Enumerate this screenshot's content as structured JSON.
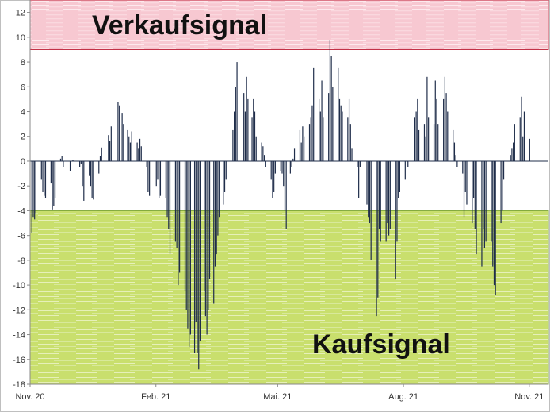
{
  "chart_data": {
    "type": "bar",
    "title": "",
    "xlabel": "",
    "ylabel": "",
    "ylim": [
      -18,
      13
    ],
    "yticks": [
      12,
      10,
      8,
      6,
      4,
      2,
      0,
      -2,
      -4,
      -6,
      -8,
      -10,
      -12,
      -14,
      -16,
      -18
    ],
    "x_range": [
      "2020-11-01",
      "2021-11-15"
    ],
    "x_tick_labels": [
      {
        "date": "2020-11-01",
        "label": "Nov. 20"
      },
      {
        "date": "2021-02-01",
        "label": "Feb. 21"
      },
      {
        "date": "2021-05-01",
        "label": "Mai. 21"
      },
      {
        "date": "2021-08-01",
        "label": "Aug. 21"
      },
      {
        "date": "2021-11-01",
        "label": "Nov. 21"
      }
    ],
    "grid": false,
    "bar_color": "#1f2d4a",
    "zones": [
      {
        "label": "Verkaufsignal",
        "from": 9,
        "to": 13,
        "color": "#f7cdd5",
        "border": "#c0283f"
      },
      {
        "label": "Kaufsignal",
        "from": -18,
        "to": -4,
        "color": "#cfe27a",
        "border": "#7ea63a"
      }
    ],
    "series": [
      {
        "points": [
          [
            "2020-11-02",
            -5.8
          ],
          [
            "2020-11-03",
            -4.5
          ],
          [
            "2020-11-04",
            -4.7
          ],
          [
            "2020-11-05",
            -4.2
          ],
          [
            "2020-11-09",
            -1.5
          ],
          [
            "2020-11-10",
            -2.5
          ],
          [
            "2020-11-11",
            -2.8
          ],
          [
            "2020-11-12",
            -3.0
          ],
          [
            "2020-11-16",
            -1.8
          ],
          [
            "2020-11-17",
            -3.9
          ],
          [
            "2020-11-18",
            -3.6
          ],
          [
            "2020-11-19",
            -3.0
          ],
          [
            "2020-11-23",
            0.2
          ],
          [
            "2020-11-24",
            0.4
          ],
          [
            "2020-11-25",
            -0.5
          ],
          [
            "2020-11-30",
            -0.8
          ],
          [
            "2020-12-02",
            0.1
          ],
          [
            "2020-12-07",
            -0.5
          ],
          [
            "2020-12-08",
            -0.2
          ],
          [
            "2020-12-09",
            -2.0
          ],
          [
            "2020-12-10",
            -3.2
          ],
          [
            "2020-12-14",
            -1.2
          ],
          [
            "2020-12-15",
            -2.0
          ],
          [
            "2020-12-16",
            -3.0
          ],
          [
            "2020-12-17",
            -3.1
          ],
          [
            "2020-12-21",
            -1.0
          ],
          [
            "2020-12-22",
            0.4
          ],
          [
            "2020-12-23",
            1.1
          ],
          [
            "2020-12-28",
            2.1
          ],
          [
            "2020-12-29",
            1.6
          ],
          [
            "2020-12-30",
            2.8
          ],
          [
            "2021-01-04",
            4.8
          ],
          [
            "2021-01-05",
            4.5
          ],
          [
            "2021-01-07",
            3.9
          ],
          [
            "2021-01-08",
            3.0
          ],
          [
            "2021-01-11",
            2.5
          ],
          [
            "2021-01-12",
            2.0
          ],
          [
            "2021-01-13",
            1.5
          ],
          [
            "2021-01-14",
            2.4
          ],
          [
            "2021-01-18",
            1.5
          ],
          [
            "2021-01-19",
            1.0
          ],
          [
            "2021-01-20",
            1.8
          ],
          [
            "2021-01-21",
            1.2
          ],
          [
            "2021-01-25",
            -0.5
          ],
          [
            "2021-01-26",
            -2.5
          ],
          [
            "2021-01-27",
            -2.8
          ],
          [
            "2021-02-01",
            -2.0
          ],
          [
            "2021-02-02",
            -1.5
          ],
          [
            "2021-02-03",
            -3.0
          ],
          [
            "2021-02-04",
            -2.8
          ],
          [
            "2021-02-08",
            -3.0
          ],
          [
            "2021-02-09",
            -4.5
          ],
          [
            "2021-02-10",
            -5.5
          ],
          [
            "2021-02-11",
            -7.5
          ],
          [
            "2021-02-15",
            -6.5
          ],
          [
            "2021-02-16",
            -7.0
          ],
          [
            "2021-02-17",
            -10.0
          ],
          [
            "2021-02-18",
            -9.0
          ],
          [
            "2021-02-22",
            -10.5
          ],
          [
            "2021-02-23",
            -12.0
          ],
          [
            "2021-02-24",
            -13.5
          ],
          [
            "2021-02-25",
            -15.0
          ],
          [
            "2021-02-26",
            -14.0
          ],
          [
            "2021-03-01",
            -15.5
          ],
          [
            "2021-03-02",
            -13.0
          ],
          [
            "2021-03-03",
            -15.5
          ],
          [
            "2021-03-04",
            -16.8
          ],
          [
            "2021-03-05",
            -14.5
          ],
          [
            "2021-03-08",
            -10.5
          ],
          [
            "2021-03-09",
            -12.5
          ],
          [
            "2021-03-10",
            -14.0
          ],
          [
            "2021-03-11",
            -12.0
          ],
          [
            "2021-03-12",
            -9.5
          ],
          [
            "2021-03-15",
            -11.5
          ],
          [
            "2021-03-16",
            -8.5
          ],
          [
            "2021-03-17",
            -7.5
          ],
          [
            "2021-03-18",
            -6.0
          ],
          [
            "2021-03-19",
            -4.5
          ],
          [
            "2021-03-22",
            -3.5
          ],
          [
            "2021-03-23",
            -2.5
          ],
          [
            "2021-03-24",
            -1.5
          ],
          [
            "2021-03-29",
            2.5
          ],
          [
            "2021-03-30",
            4.0
          ],
          [
            "2021-03-31",
            6.0
          ],
          [
            "2021-04-01",
            8.0
          ],
          [
            "2021-04-06",
            5.5
          ],
          [
            "2021-04-07",
            4.0
          ],
          [
            "2021-04-08",
            6.8
          ],
          [
            "2021-04-09",
            5.0
          ],
          [
            "2021-04-12",
            3.5
          ],
          [
            "2021-04-13",
            5.0
          ],
          [
            "2021-04-14",
            4.0
          ],
          [
            "2021-04-15",
            2.0
          ],
          [
            "2021-04-19",
            1.5
          ],
          [
            "2021-04-20",
            1.2
          ],
          [
            "2021-04-21",
            0.5
          ],
          [
            "2021-04-22",
            -0.5
          ],
          [
            "2021-04-26",
            -1.5
          ],
          [
            "2021-04-27",
            -3.0
          ],
          [
            "2021-04-28",
            -2.5
          ],
          [
            "2021-04-29",
            -1.0
          ],
          [
            "2021-05-03",
            -0.8
          ],
          [
            "2021-05-04",
            -1.0
          ],
          [
            "2021-05-05",
            -2.0
          ],
          [
            "2021-05-06",
            -4.0
          ],
          [
            "2021-05-07",
            -5.5
          ],
          [
            "2021-05-10",
            -1.0
          ],
          [
            "2021-05-11",
            -0.5
          ],
          [
            "2021-05-12",
            0.2
          ],
          [
            "2021-05-13",
            1.0
          ],
          [
            "2021-05-17",
            2.5
          ],
          [
            "2021-05-18",
            1.5
          ],
          [
            "2021-05-19",
            2.8
          ],
          [
            "2021-05-20",
            2.0
          ],
          [
            "2021-05-24",
            3.0
          ],
          [
            "2021-05-25",
            3.5
          ],
          [
            "2021-05-26",
            4.5
          ],
          [
            "2021-05-27",
            7.5
          ],
          [
            "2021-05-31",
            5.0
          ],
          [
            "2021-06-01",
            4.0
          ],
          [
            "2021-06-02",
            6.5
          ],
          [
            "2021-06-03",
            3.5
          ],
          [
            "2021-06-07",
            5.5
          ],
          [
            "2021-06-08",
            9.8
          ],
          [
            "2021-06-09",
            8.5
          ],
          [
            "2021-06-10",
            6.0
          ],
          [
            "2021-06-14",
            7.5
          ],
          [
            "2021-06-15",
            5.0
          ],
          [
            "2021-06-16",
            4.5
          ],
          [
            "2021-06-17",
            4.0
          ],
          [
            "2021-06-21",
            3.5
          ],
          [
            "2021-06-22",
            5.0
          ],
          [
            "2021-06-23",
            3.0
          ],
          [
            "2021-06-24",
            1.0
          ],
          [
            "2021-06-28",
            -0.5
          ],
          [
            "2021-06-29",
            -3.0
          ],
          [
            "2021-06-30",
            -0.5
          ],
          [
            "2021-07-05",
            -3.5
          ],
          [
            "2021-07-06",
            -4.5
          ],
          [
            "2021-07-07",
            -5.0
          ],
          [
            "2021-07-08",
            -8.0
          ],
          [
            "2021-07-12",
            -12.5
          ],
          [
            "2021-07-13",
            -11.0
          ],
          [
            "2021-07-14",
            -5.5
          ],
          [
            "2021-07-15",
            -6.5
          ],
          [
            "2021-07-19",
            -6.5
          ],
          [
            "2021-07-20",
            -5.0
          ],
          [
            "2021-07-21",
            -6.0
          ],
          [
            "2021-07-22",
            -5.5
          ],
          [
            "2021-07-26",
            -9.5
          ],
          [
            "2021-07-27",
            -6.5
          ],
          [
            "2021-07-28",
            -3.0
          ],
          [
            "2021-07-29",
            -2.5
          ],
          [
            "2021-08-02",
            -1.5
          ],
          [
            "2021-08-04",
            -0.5
          ],
          [
            "2021-08-09",
            3.5
          ],
          [
            "2021-08-10",
            4.0
          ],
          [
            "2021-08-11",
            5.0
          ],
          [
            "2021-08-12",
            2.5
          ],
          [
            "2021-08-16",
            3.0
          ],
          [
            "2021-08-17",
            2.0
          ],
          [
            "2021-08-18",
            6.8
          ],
          [
            "2021-08-19",
            3.5
          ],
          [
            "2021-08-23",
            3.0
          ],
          [
            "2021-08-24",
            6.5
          ],
          [
            "2021-08-25",
            5.0
          ],
          [
            "2021-08-26",
            3.0
          ],
          [
            "2021-08-30",
            5.0
          ],
          [
            "2021-08-31",
            6.8
          ],
          [
            "2021-09-01",
            5.5
          ],
          [
            "2021-09-02",
            4.0
          ],
          [
            "2021-09-06",
            2.5
          ],
          [
            "2021-09-07",
            1.5
          ],
          [
            "2021-09-08",
            0.5
          ],
          [
            "2021-09-09",
            -0.5
          ],
          [
            "2021-09-13",
            -1.0
          ],
          [
            "2021-09-14",
            -4.5
          ],
          [
            "2021-09-15",
            -2.5
          ],
          [
            "2021-09-16",
            -3.5
          ],
          [
            "2021-09-20",
            -5.0
          ],
          [
            "2021-09-21",
            -3.0
          ],
          [
            "2021-09-22",
            -5.5
          ],
          [
            "2021-09-23",
            -7.5
          ],
          [
            "2021-09-27",
            -8.5
          ],
          [
            "2021-09-28",
            -5.5
          ],
          [
            "2021-09-29",
            -7.0
          ],
          [
            "2021-09-30",
            -6.5
          ],
          [
            "2021-10-04",
            -6.5
          ],
          [
            "2021-10-05",
            -8.5
          ],
          [
            "2021-10-06",
            -10.0
          ],
          [
            "2021-10-07",
            -10.8
          ],
          [
            "2021-10-11",
            -5.0
          ],
          [
            "2021-10-12",
            -4.0
          ],
          [
            "2021-10-13",
            -1.5
          ],
          [
            "2021-10-18",
            0.5
          ],
          [
            "2021-10-19",
            1.0
          ],
          [
            "2021-10-20",
            1.5
          ],
          [
            "2021-10-21",
            3.0
          ],
          [
            "2021-10-25",
            3.5
          ],
          [
            "2021-10-26",
            5.2
          ],
          [
            "2021-10-27",
            2.0
          ],
          [
            "2021-10-28",
            4.0
          ],
          [
            "2021-11-01",
            1.8
          ]
        ]
      }
    ]
  }
}
